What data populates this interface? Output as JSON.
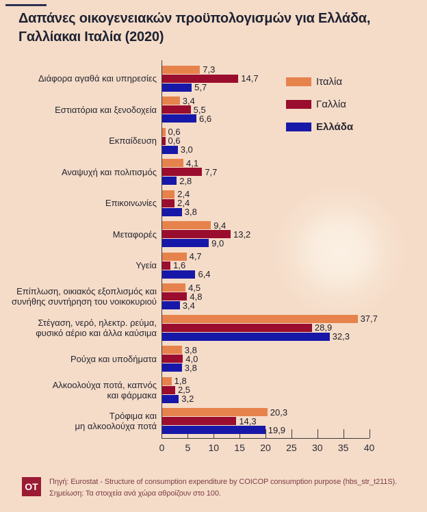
{
  "header": {
    "title_line1": "Δαπάνες οικογενειακών προϋπολογισμών για Ελλάδα,",
    "title_line2": "Γαλλίακαι Ιταλία (2020)"
  },
  "legend": {
    "position": "top-right",
    "items": [
      {
        "label": "Ιταλία",
        "color": "#E6834C",
        "bold": false
      },
      {
        "label": "Γαλλία",
        "color": "#9A0D2E",
        "bold": false
      },
      {
        "label": "Ελλάδα",
        "color": "#1718A8",
        "bold": true
      }
    ]
  },
  "chart_data": {
    "type": "bar",
    "orientation": "horizontal",
    "title": "Δαπάνες οικογενειακών προϋπολογισμών για Ελλάδα, Γαλλίακαι Ιταλία (2020)",
    "xlim": [
      0,
      40
    ],
    "xticks": [
      0,
      5,
      10,
      15,
      20,
      25,
      30,
      35,
      40
    ],
    "grid": false,
    "decimal_separator": ",",
    "categories": [
      "Διάφορα αγαθά και υπηρεσίες",
      "Εστιατόρια και ξενοδοχεία",
      "Εκπαίδευση",
      "Αναψυχή και πολιτισμός",
      "Επικοινωνίες",
      "Μεταφορές",
      "Υγεία",
      "Επίπλωση, οικιακός εξοπλισμός και\nσυνήθης συντήρηση του νοικοκυριού",
      "Στέγαση, νερό, ηλεκτρ. ρεύμα,\nφυσικό αέριο και άλλα καύσιμα",
      "Ρούχα και υποδήματα",
      "Αλκοολούχα ποτά, καπνός\nκαι φάρμακα",
      "Τρόφιμα και\nμη αλκοολούχα ποτά"
    ],
    "series": [
      {
        "id": "italia",
        "name": "Ιταλία",
        "color": "#E6834C",
        "values": [
          7.3,
          3.4,
          0.6,
          4.1,
          2.4,
          9.4,
          4.7,
          4.5,
          37.7,
          3.8,
          1.8,
          20.3
        ],
        "labels": [
          "7,3",
          "3,4",
          "0,6",
          "4,1",
          "2,4",
          "9,4",
          "4,7",
          "4,5",
          "37,7",
          "3,8",
          "1,8",
          "20,3"
        ]
      },
      {
        "id": "gallia",
        "name": "Γαλλία",
        "color": "#9A0D2E",
        "values": [
          14.7,
          5.5,
          0.6,
          7.7,
          2.4,
          13.2,
          1.6,
          4.8,
          28.9,
          4.0,
          2.5,
          14.3
        ],
        "labels": [
          "14,7",
          "5,5",
          "0,6",
          "7,7",
          "2,4",
          "13,2",
          "1,6",
          "4,8",
          "28,9",
          "4,0",
          "2,5",
          "14,3"
        ]
      },
      {
        "id": "ellada",
        "name": "Ελλάδα",
        "color": "#1718A8",
        "values": [
          5.7,
          6.6,
          3.0,
          2.8,
          3.8,
          9.0,
          6.4,
          3.4,
          32.3,
          3.8,
          3.2,
          19.9
        ],
        "labels": [
          "5,7",
          "6,6",
          "3,0",
          "2,8",
          "3,8",
          "9,0",
          "6,4",
          "3,4",
          "32,3",
          "3,8",
          "3,2",
          "19,9"
        ]
      }
    ]
  },
  "footer": {
    "logo": "OT",
    "source": "Πηγή: Eurostat - Structure of consumption expenditure by COICOP consumption purpose (hbs_str_t211S).",
    "note": "Σημείωση: Τα στοιχεία ανά χώρα αθροίζουν στο 100."
  },
  "colors": {
    "background": "#F5DCC9",
    "title_text": "#1D2130",
    "axis": "#3B3B3B",
    "accent_line": "#2A3050",
    "footer_text": "#7D3C44",
    "logo_background": "#9B1B33"
  }
}
